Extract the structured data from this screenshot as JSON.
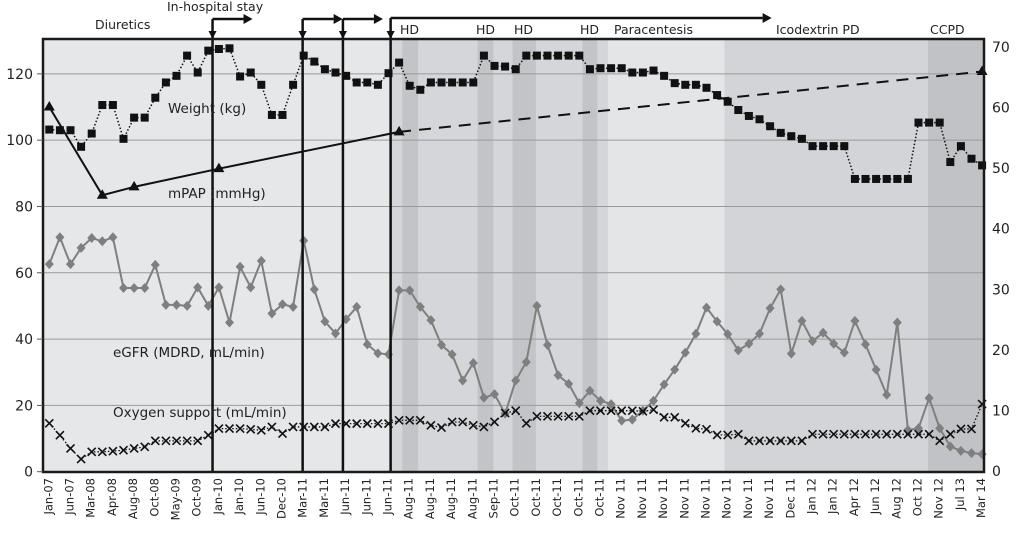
{
  "chart_data": {
    "type": "line",
    "x_labels": [
      "Jan-07",
      "Jun-07",
      "Mar-08",
      "Apr-08",
      "Aug-08",
      "Oct-08",
      "May-09",
      "Oct-09",
      "Jan-10",
      "Jan-10",
      "Jun-10",
      "Dec-10",
      "Mar-11",
      "Mar-11",
      "Jun-11",
      "Jun-11",
      "Jun-11",
      "Aug-11",
      "Aug-11",
      "Aug-11",
      "Aug-11",
      "Sep-11",
      "Oct-11",
      "Oct-11",
      "Oct-11",
      "Oct-11",
      "Oct-11",
      "Nov 11",
      "Nov 11",
      "Nov 11",
      "Nov 11",
      "Nov 11",
      "Nov 11",
      "Nov 11",
      "Nov 11",
      "Dec 11",
      "Jan 12",
      "Jan 12",
      "Apr 12",
      "Jun 12",
      "Aug 12",
      "Oct 12",
      "Nov 12",
      "Jul 13",
      "Mar 14"
    ],
    "x_label_every": 2,
    "y_left": {
      "ylim": [
        0,
        130
      ],
      "ticks": [
        0,
        20,
        40,
        60,
        80,
        100,
        120
      ]
    },
    "y_right": {
      "ylim": [
        0,
        70
      ],
      "ticks": [
        0,
        10,
        20,
        30,
        40,
        50,
        60,
        70
      ]
    },
    "grid": "horizontal",
    "series": [
      {
        "name": "Weight (kg)",
        "marker": "square",
        "line": "dotted",
        "color": "#111111",
        "values": [
          103.2,
          103,
          103,
          98,
          102,
          110.6,
          110.6,
          100.4,
          106.8,
          106.8,
          112.8,
          117.4,
          119.4,
          125.5,
          120.4,
          127,
          127.5,
          127.7,
          119.2,
          120.4,
          116.7,
          107.6,
          107.6,
          116.7,
          125.5,
          123.7,
          121.4,
          120.4,
          119.4,
          117.4,
          117.4,
          116.7,
          120.2,
          123.4,
          116.4,
          115.2,
          117.4,
          117.4,
          117.4,
          117.4,
          117.4,
          125.5,
          122.4,
          122.2,
          121.4,
          125.5,
          125.5,
          125.5,
          125.5,
          125.5,
          125.5,
          121.4,
          121.7,
          121.7,
          121.7,
          120.4,
          120.4,
          121,
          119.4,
          117.2,
          116.7,
          116.7,
          115.8,
          113.6,
          111.6,
          109.1,
          107.3,
          106.3,
          104.2,
          102.2,
          101.2,
          100.4,
          98.2,
          98.2,
          98.2,
          98.2,
          88.3,
          88.3,
          88.3,
          88.3,
          88.3,
          88.3,
          105.3,
          105.3,
          105.3,
          93.4,
          98.2,
          94.4,
          92.4
        ]
      },
      {
        "name": "mPAP (mmHg)",
        "marker": "triangle",
        "line": "solid",
        "projected_line": "dashed",
        "color": "#111111",
        "points": [
          [
            0,
            110
          ],
          [
            5,
            83.4
          ],
          [
            8,
            85.9
          ],
          [
            16,
            91.4
          ],
          [
            33,
            102.5
          ],
          [
            88,
            120.7
          ]
        ],
        "projected_from_index": 33
      },
      {
        "name": "eGFR (MDRD, mL/min)",
        "marker": "diamond",
        "line": "solid",
        "color": "#7f7f7f",
        "values": [
          62.6,
          70.7,
          62.6,
          67.5,
          70.5,
          69.5,
          70.7,
          55.4,
          55.4,
          55.4,
          62.4,
          50.3,
          50.3,
          50,
          55.6,
          50,
          55.6,
          45,
          61.8,
          55.6,
          63.6,
          47.7,
          50.5,
          49.7,
          69.7,
          55,
          45.3,
          41.7,
          46,
          49.7,
          38.4,
          35.7,
          35.4,
          54.7,
          54.7,
          49.7,
          45.7,
          38.2,
          35.4,
          27.5,
          32.8,
          22.3,
          23.4,
          17.5,
          27.5,
          33.1,
          50,
          38.2,
          29.1,
          26.5,
          20.7,
          24.4,
          21.4,
          20.4,
          15.4,
          15.7,
          18.4,
          21.4,
          26.3,
          30.8,
          35.9,
          41.6,
          49.5,
          45.3,
          41.5,
          36.6,
          38.6,
          41.6,
          49.3,
          55,
          35.6,
          45.5,
          39.4,
          41.9,
          38.6,
          35.9,
          45.5,
          38.4,
          30.8,
          23.2,
          45,
          12.6,
          13.1,
          22.2,
          13.1,
          7.6,
          6.3,
          5.6,
          5.3
        ]
      },
      {
        "name": "Oxygen support (mL/min)",
        "marker": "x",
        "line": "dotted",
        "color": "#111111",
        "values": [
          14.6,
          11,
          7,
          3.8,
          6,
          6,
          6.2,
          6.5,
          7,
          7.5,
          9.3,
          9.3,
          9.3,
          9.3,
          9.3,
          11,
          13,
          13,
          13,
          12.8,
          12.5,
          13.5,
          11.5,
          13.5,
          13.5,
          13.5,
          13.5,
          14.5,
          14.5,
          14.5,
          14.5,
          14.5,
          14.5,
          15.5,
          15.5,
          15.5,
          14,
          13.3,
          15,
          15,
          14,
          13.5,
          15,
          17.7,
          18.4,
          14.6,
          16.7,
          16.7,
          16.7,
          16.7,
          16.7,
          18.4,
          18.4,
          18.4,
          18.4,
          18.4,
          18.2,
          18.7,
          16.4,
          16.4,
          14.6,
          13.1,
          12.8,
          11.1,
          11.1,
          11.3,
          9.3,
          9.3,
          9.3,
          9.3,
          9.3,
          9.3,
          11.3,
          11.3,
          11.3,
          11.3,
          11.3,
          11.3,
          11.3,
          11.3,
          11.3,
          11.3,
          11.3,
          11.3,
          9.3,
          11.3,
          12.9,
          12.9,
          20.4
        ]
      }
    ],
    "events": [
      {
        "text": "Diuretics"
      },
      {
        "text": "In-hospital stay",
        "at_index": 15.4
      },
      {
        "text": "",
        "at_index": 23.9
      },
      {
        "text": "",
        "at_index": 27.7
      },
      {
        "text": "",
        "at_index": 32.2
      }
    ],
    "periods": [
      {
        "label": "HD",
        "from": 33.3,
        "to": 34.8,
        "shade": "#c3c4c7"
      },
      {
        "label": "HD",
        "from": 40.4,
        "to": 41.9,
        "shade": "#c3c4c7"
      },
      {
        "label": "HD",
        "from": 43.7,
        "to": 45.9,
        "shade": "#c3c4c7"
      },
      {
        "label": "HD",
        "from": 50.3,
        "to": 51.7,
        "shade": "#c3c4c7"
      },
      {
        "label": "Paracentesis",
        "from": 52.7,
        "to": 63.7,
        "shade": "#e4e5e7"
      },
      {
        "label": "Icodextrin PD",
        "from": 63.7,
        "to": 82.9,
        "shade": "#d3d4d7"
      },
      {
        "label": "CCPD",
        "from": 82.9,
        "to": 88.2,
        "shade": "#c1c2c5"
      }
    ],
    "colors": {
      "background": "#e6e7e9",
      "treatment_background": "#d5d6d9",
      "grid": "#9a9a9a",
      "frame": "#1a1a1a"
    }
  }
}
